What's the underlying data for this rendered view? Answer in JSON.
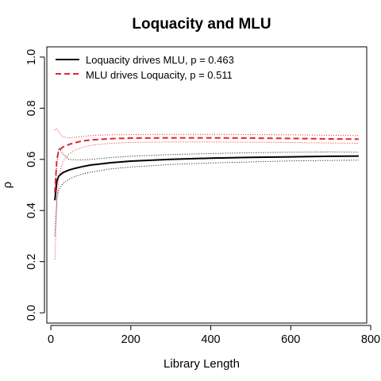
{
  "chart_data": {
    "type": "line",
    "title": "Loquacity and MLU",
    "xlabel": "Library Length",
    "ylabel": "ρ",
    "xlim": [
      -10,
      790
    ],
    "ylim": [
      -0.04,
      1.04
    ],
    "x_ticks": [
      0,
      200,
      400,
      600,
      800
    ],
    "x_tick_labels": [
      "0",
      "200",
      "400",
      "600",
      "800"
    ],
    "y_ticks": [
      0.0,
      0.2,
      0.4,
      0.6,
      0.8,
      1.0
    ],
    "y_tick_labels": [
      "0.0",
      "0.2",
      "0.4",
      "0.6",
      "0.8",
      "1.0"
    ],
    "grid": false,
    "legend_position": "top-left",
    "series": [
      {
        "name": "Loquacity drives MLU, p = 0.463",
        "color": "#000000",
        "style": "solid",
        "x": [
          10,
          15,
          20,
          30,
          45,
          60,
          80,
          100,
          150,
          200,
          300,
          400,
          500,
          600,
          700,
          770
        ],
        "y": [
          0.44,
          0.515,
          0.535,
          0.548,
          0.558,
          0.565,
          0.572,
          0.578,
          0.587,
          0.593,
          0.6,
          0.605,
          0.608,
          0.61,
          0.612,
          0.613
        ],
        "upper": [
          0.47,
          0.58,
          0.645,
          0.622,
          0.6,
          0.598,
          0.598,
          0.6,
          0.607,
          0.612,
          0.619,
          0.623,
          0.626,
          0.628,
          0.629,
          0.628
        ],
        "lower": [
          0.3,
          0.45,
          0.482,
          0.505,
          0.522,
          0.533,
          0.543,
          0.55,
          0.563,
          0.57,
          0.58,
          0.586,
          0.59,
          0.594,
          0.596,
          0.597
        ]
      },
      {
        "name": "MLU drives Loquacity, p = 0.511",
        "color": "#e8252d",
        "style": "dashed",
        "x": [
          10,
          15,
          20,
          30,
          45,
          60,
          80,
          100,
          150,
          200,
          300,
          400,
          500,
          600,
          700,
          770
        ],
        "y": [
          0.47,
          0.6,
          0.635,
          0.648,
          0.658,
          0.665,
          0.672,
          0.676,
          0.681,
          0.683,
          0.684,
          0.684,
          0.683,
          0.682,
          0.68,
          0.679
        ],
        "upper": [
          0.715,
          0.72,
          0.705,
          0.688,
          0.684,
          0.686,
          0.69,
          0.693,
          0.696,
          0.697,
          0.698,
          0.698,
          0.697,
          0.696,
          0.694,
          0.693
        ],
        "lower": [
          0.21,
          0.43,
          0.535,
          0.592,
          0.62,
          0.636,
          0.648,
          0.655,
          0.663,
          0.666,
          0.668,
          0.668,
          0.667,
          0.666,
          0.664,
          0.663
        ]
      }
    ]
  }
}
